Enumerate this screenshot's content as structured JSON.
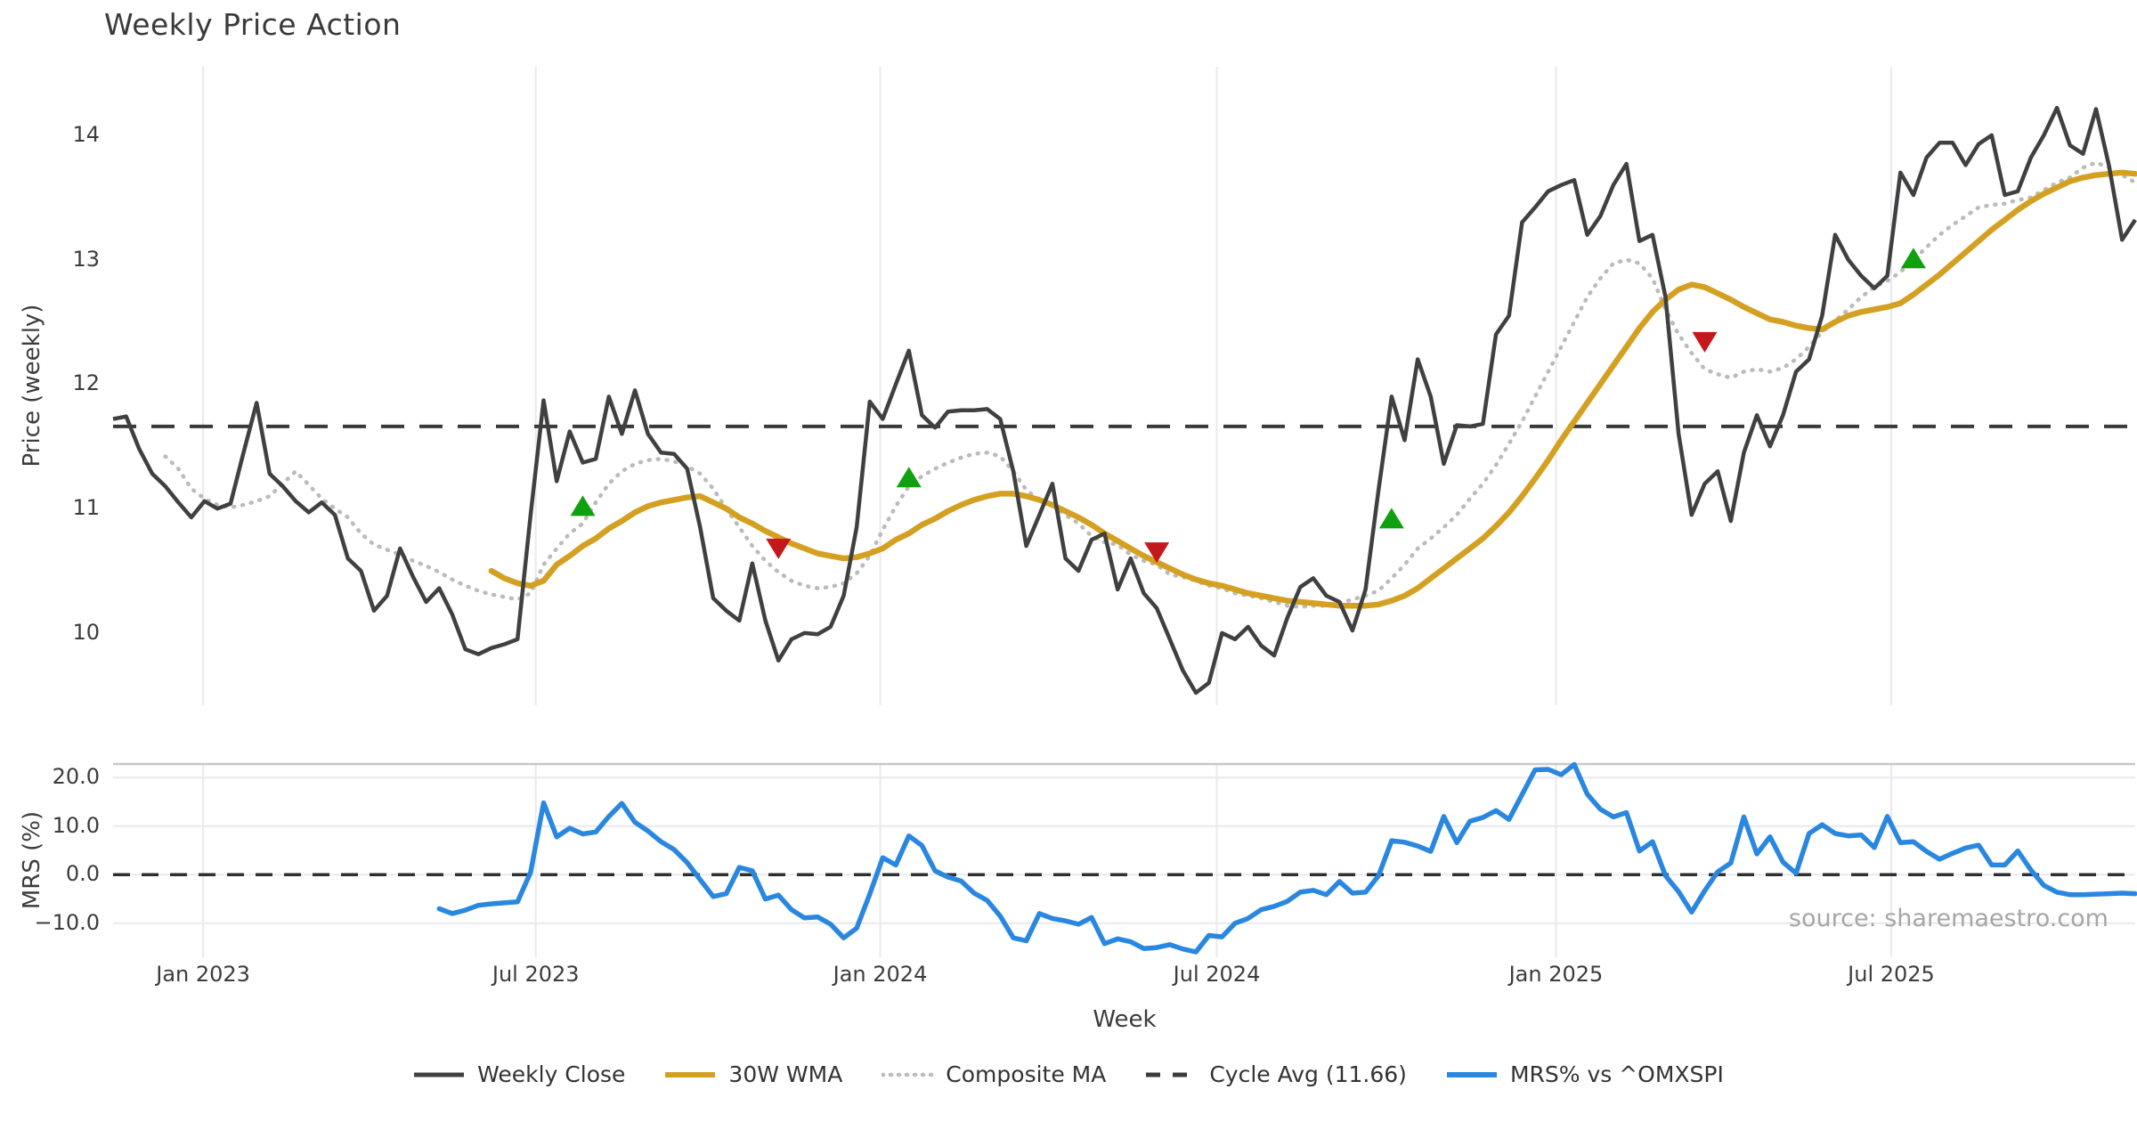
{
  "title": "Weekly Price Action",
  "xlabel": "Week",
  "source": "source: sharemaestro.com",
  "colors": {
    "close": "#404040",
    "wma": "#d4a021",
    "composite": "#bbbbbb",
    "cycle": "#3a3a3a",
    "mrs": "#2a87e0",
    "buy": "#10a010",
    "sell": "#c4181c",
    "grid": "#e9e9ef",
    "spine": "#c8c8c8",
    "text": "#3c3c3c",
    "muted": "#a6a6a6"
  },
  "legend": [
    {
      "label": "Weekly Close",
      "swatch": "solid",
      "color_key": "close"
    },
    {
      "label": "30W WMA",
      "swatch": "solid",
      "color_key": "wma"
    },
    {
      "label": "Composite MA",
      "swatch": "dotted",
      "color_key": "composite"
    },
    {
      "label": "Cycle Avg (11.66)",
      "swatch": "dashed",
      "color_key": "cycle"
    },
    {
      "label": "MRS% vs ^OMXSPI",
      "swatch": "solid",
      "color_key": "mrs"
    }
  ],
  "chart_data": {
    "type": "line",
    "weeks_total": 156,
    "x_ticks": [
      {
        "label": "Jan 2023",
        "week": 6.9
      },
      {
        "label": "Jul 2023",
        "week": 32.4
      },
      {
        "label": "Jan 2024",
        "week": 58.8
      },
      {
        "label": "Jul 2024",
        "week": 84.6
      },
      {
        "label": "Jan 2025",
        "week": 110.6
      },
      {
        "label": "Jul 2025",
        "week": 136.3
      }
    ],
    "panels": [
      {
        "name": "price",
        "ylabel": "Price (weekly)",
        "ylim": [
          9.42,
          14.55
        ],
        "yticks": [
          14,
          13,
          12,
          11,
          10
        ],
        "ytick_labels": [
          "14",
          "13",
          "12",
          "11",
          "10"
        ],
        "cycle_avg": 11.66,
        "series": [
          {
            "name": "Weekly Close",
            "color_key": "close",
            "style": "solid",
            "start_week": 0,
            "values": [
              11.72,
              11.74,
              11.48,
              11.28,
              11.18,
              11.05,
              10.93,
              11.06,
              11.0,
              11.04,
              11.45,
              11.85,
              11.28,
              11.18,
              11.06,
              10.97,
              11.05,
              10.95,
              10.6,
              10.5,
              10.18,
              10.3,
              10.68,
              10.45,
              10.25,
              10.36,
              10.15,
              9.87,
              9.83,
              9.88,
              9.91,
              9.95,
              10.95,
              11.87,
              11.22,
              11.62,
              11.37,
              11.4,
              11.9,
              11.6,
              11.95,
              11.6,
              11.45,
              11.44,
              11.32,
              10.85,
              10.28,
              10.18,
              10.1,
              10.56,
              10.1,
              9.78,
              9.95,
              10.0,
              9.99,
              10.05,
              10.3,
              10.85,
              11.86,
              11.72,
              12.0,
              12.27,
              11.75,
              11.65,
              11.78,
              11.79,
              11.79,
              11.8,
              11.72,
              11.3,
              10.7,
              10.95,
              11.2,
              10.6,
              10.5,
              10.75,
              10.8,
              10.35,
              10.6,
              10.32,
              10.2,
              9.95,
              9.7,
              9.52,
              9.6,
              10.0,
              9.95,
              10.05,
              9.9,
              9.82,
              10.12,
              10.37,
              10.44,
              10.3,
              10.25,
              10.02,
              10.35,
              11.15,
              11.9,
              11.55,
              12.2,
              11.9,
              11.36,
              11.67,
              11.66,
              11.68,
              12.4,
              12.55,
              13.3,
              13.42,
              13.55,
              13.6,
              13.64,
              13.2,
              13.35,
              13.6,
              13.77,
              13.15,
              13.2,
              12.7,
              11.6,
              10.95,
              11.2,
              11.3,
              10.9,
              11.45,
              11.75,
              11.5,
              11.75,
              12.1,
              12.2,
              12.55,
              13.2,
              13.0,
              12.87,
              12.77,
              12.87,
              13.7,
              13.52,
              13.82,
              13.94,
              13.94,
              13.76,
              13.93,
              14.0,
              13.52,
              13.55,
              13.82,
              14.0,
              14.22,
              13.92,
              13.85,
              14.21,
              13.75,
              13.16,
              13.32
            ]
          },
          {
            "name": "30W WMA",
            "color_key": "wma",
            "style": "solid",
            "start_week": 29,
            "values": [
              10.5,
              10.44,
              10.4,
              10.38,
              10.42,
              10.55,
              10.62,
              10.7,
              10.76,
              10.84,
              10.9,
              10.97,
              11.02,
              11.05,
              11.07,
              11.09,
              11.1,
              11.05,
              11.0,
              10.93,
              10.88,
              10.82,
              10.77,
              10.72,
              10.68,
              10.64,
              10.62,
              10.6,
              10.61,
              10.64,
              10.68,
              10.75,
              10.8,
              10.87,
              10.92,
              10.98,
              11.03,
              11.07,
              11.1,
              11.12,
              11.12,
              11.1,
              11.07,
              11.03,
              10.98,
              10.93,
              10.87,
              10.8,
              10.74,
              10.68,
              10.62,
              10.57,
              10.52,
              10.47,
              10.43,
              10.4,
              10.38,
              10.35,
              10.32,
              10.3,
              10.28,
              10.26,
              10.25,
              10.24,
              10.23,
              10.22,
              10.22,
              10.22,
              10.23,
              10.26,
              10.3,
              10.36,
              10.44,
              10.52,
              10.6,
              10.68,
              10.76,
              10.86,
              10.97,
              11.1,
              11.24,
              11.39,
              11.55,
              11.7,
              11.85,
              12.0,
              12.15,
              12.3,
              12.45,
              12.58,
              12.68,
              12.76,
              12.8,
              12.78,
              12.73,
              12.68,
              12.62,
              12.57,
              12.52,
              12.5,
              12.47,
              12.45,
              12.44,
              12.5,
              12.55,
              12.58,
              12.6,
              12.62,
              12.65,
              12.72,
              12.8,
              12.88,
              12.97,
              13.06,
              13.15,
              13.24,
              13.32,
              13.4,
              13.47,
              13.53,
              13.58,
              13.63,
              13.66,
              13.68,
              13.69,
              13.7,
              13.69
            ]
          },
          {
            "name": "Composite MA",
            "color_key": "composite",
            "style": "dotted",
            "start_week": 4,
            "values": [
              11.42,
              11.32,
              11.16,
              11.08,
              11.03,
              11.01,
              11.03,
              11.06,
              11.1,
              11.2,
              11.3,
              11.19,
              11.08,
              11.0,
              10.93,
              10.8,
              10.71,
              10.67,
              10.63,
              10.58,
              10.54,
              10.49,
              10.43,
              10.38,
              10.34,
              10.31,
              10.29,
              10.27,
              10.32,
              10.55,
              10.68,
              10.8,
              10.88,
              11.05,
              11.2,
              11.3,
              11.36,
              11.39,
              11.4,
              11.38,
              11.34,
              11.28,
              11.16,
              11.0,
              10.85,
              10.7,
              10.58,
              10.49,
              10.42,
              10.38,
              10.36,
              10.37,
              10.4,
              10.48,
              10.62,
              10.83,
              11.02,
              11.18,
              11.26,
              11.32,
              11.37,
              11.41,
              11.44,
              11.45,
              11.42,
              11.3,
              11.15,
              11.07,
              11.03,
              10.95,
              10.88,
              10.78,
              10.73,
              10.71,
              10.63,
              10.58,
              10.55,
              10.47,
              10.45,
              10.42,
              10.38,
              10.36,
              10.32,
              10.3,
              10.28,
              10.25,
              10.22,
              10.21,
              10.22,
              10.22,
              10.24,
              10.27,
              10.3,
              10.34,
              10.44,
              10.55,
              10.68,
              10.76,
              10.85,
              10.95,
              11.08,
              11.2,
              11.35,
              11.52,
              11.7,
              11.9,
              12.1,
              12.3,
              12.5,
              12.7,
              12.85,
              12.97,
              13.0,
              12.97,
              12.85,
              12.6,
              12.4,
              12.25,
              12.12,
              12.08,
              12.05,
              12.1,
              12.12,
              12.1,
              12.13,
              12.2,
              12.3,
              12.42,
              12.51,
              12.6,
              12.7,
              12.78,
              12.83,
              12.9,
              13.0,
              13.1,
              13.2,
              13.28,
              13.35,
              13.42,
              13.44,
              13.45,
              13.48,
              13.5,
              13.56,
              13.62,
              13.66,
              13.74,
              13.78,
              13.74,
              13.68,
              13.62
            ]
          },
          {
            "name": "Cycle Avg (11.66)",
            "color_key": "cycle",
            "style": "dashed",
            "value": 11.66
          }
        ],
        "markers": {
          "buy": [
            {
              "week": 36,
              "price": 11.02
            },
            {
              "week": 61,
              "price": 11.25
            },
            {
              "week": 98,
              "price": 10.92
            },
            {
              "week": 138,
              "price": 13.01
            }
          ],
          "sell": [
            {
              "week": 51,
              "price": 10.68
            },
            {
              "week": 80,
              "price": 10.65
            },
            {
              "week": 122,
              "price": 12.34
            }
          ]
        }
      },
      {
        "name": "mrs",
        "ylabel": "MRS (%)",
        "ylim": [
          -17.0,
          22.8
        ],
        "yticks": [
          20,
          10,
          0,
          -10
        ],
        "ytick_labels": [
          "20.0",
          "10.0",
          "0.0",
          "−10.0"
        ],
        "zero_line": 0,
        "series": [
          {
            "name": "MRS% vs ^OMXSPI",
            "color_key": "mrs",
            "style": "solid",
            "start_week": 25,
            "values": [
              -7.0,
              -8.0,
              -7.3,
              -6.3,
              -6.0,
              -5.8,
              -5.6,
              0.5,
              14.8,
              7.8,
              9.6,
              8.4,
              8.8,
              12.0,
              14.7,
              10.8,
              9.0,
              6.8,
              5.2,
              2.5,
              -1.0,
              -4.5,
              -3.9,
              1.5,
              0.8,
              -5.0,
              -4.2,
              -7.2,
              -8.9,
              -8.7,
              -10.2,
              -13.0,
              -11.0,
              -4.0,
              3.5,
              2.0,
              8.0,
              6.0,
              0.8,
              -0.5,
              -1.3,
              -3.8,
              -5.3,
              -8.5,
              -13.0,
              -13.6,
              -8.0,
              -9.0,
              -9.5,
              -10.2,
              -8.8,
              -14.2,
              -13.2,
              -13.8,
              -15.2,
              -15.0,
              -14.4,
              -15.3,
              -15.9,
              -12.5,
              -12.8,
              -10.0,
              -9.0,
              -7.2,
              -6.5,
              -5.5,
              -3.6,
              -3.2,
              -4.1,
              -1.4,
              -3.8,
              -3.6,
              -0.2,
              7.0,
              6.7,
              5.9,
              4.8,
              12.0,
              6.6,
              11.0,
              11.8,
              13.2,
              11.4,
              16.5,
              21.6,
              21.7,
              20.6,
              22.7,
              16.6,
              13.5,
              11.9,
              12.8,
              4.9,
              6.8,
              -0.2,
              -3.5,
              -7.7,
              -3.3,
              0.6,
              2.4,
              11.9,
              4.3,
              7.8,
              2.6,
              0.3,
              8.5,
              10.3,
              8.5,
              8.0,
              8.2,
              5.6,
              12.0,
              6.6,
              6.8,
              4.8,
              3.2,
              4.4,
              5.5,
              6.1,
              2.0,
              2.0,
              4.9,
              1.0,
              -2.2,
              -3.6,
              -4.1,
              -4.1,
              -4.0,
              -3.9,
              -3.8,
              -3.9
            ]
          }
        ]
      }
    ]
  }
}
